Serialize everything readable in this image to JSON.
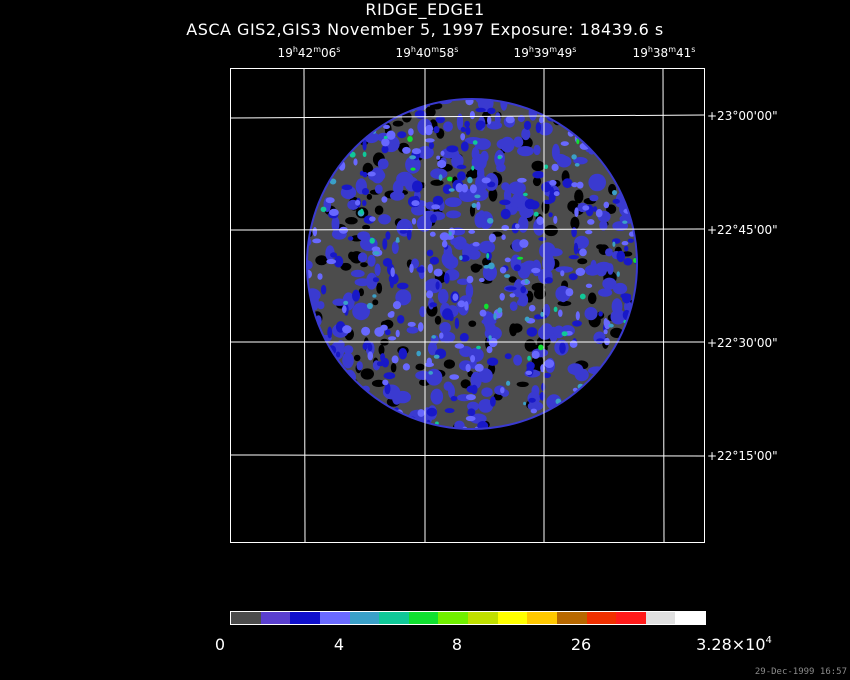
{
  "title": {
    "line1": "RIDGE_EDGE1",
    "line2": "ASCA GIS2,GIS3 November 5, 1997 Exposure: 18439.6 s"
  },
  "ra_axis": [
    {
      "h": "19",
      "m": "42",
      "s": "06"
    },
    {
      "h": "19",
      "m": "40",
      "s": "58"
    },
    {
      "h": "19",
      "m": "39",
      "s": "49"
    },
    {
      "h": "19",
      "m": "38",
      "s": "41"
    }
  ],
  "ra_units": {
    "h": "h",
    "m": "m",
    "s": "s"
  },
  "dec_axis": [
    "+23°00'00\"",
    "+22°45'00\"",
    "+22°30'00\"",
    "+22°15'00\""
  ],
  "colorbar": {
    "colors": [
      "#4c4c4c",
      "#5a3fcf",
      "#1010cc",
      "#6a6aff",
      "#3aa0c8",
      "#10c898",
      "#10e030",
      "#70f000",
      "#c0e000",
      "#ffff00",
      "#ffc800",
      "#b86800",
      "#f03000",
      "#ff1a1a",
      "#e0e0e0",
      "#ffffff"
    ],
    "labels": [
      "0",
      "4",
      "8",
      "26"
    ],
    "max_label_mantissa": "3.28×10",
    "max_label_exponent": "4"
  },
  "image_palette": [
    "#000000",
    "#4c4c4c",
    "#3a3ad0",
    "#1818c8",
    "#6868ff",
    "#3aa0c8",
    "#10c898",
    "#10e030",
    "#ffff00"
  ],
  "timestamp": "29-Dec-1999 16:57"
}
